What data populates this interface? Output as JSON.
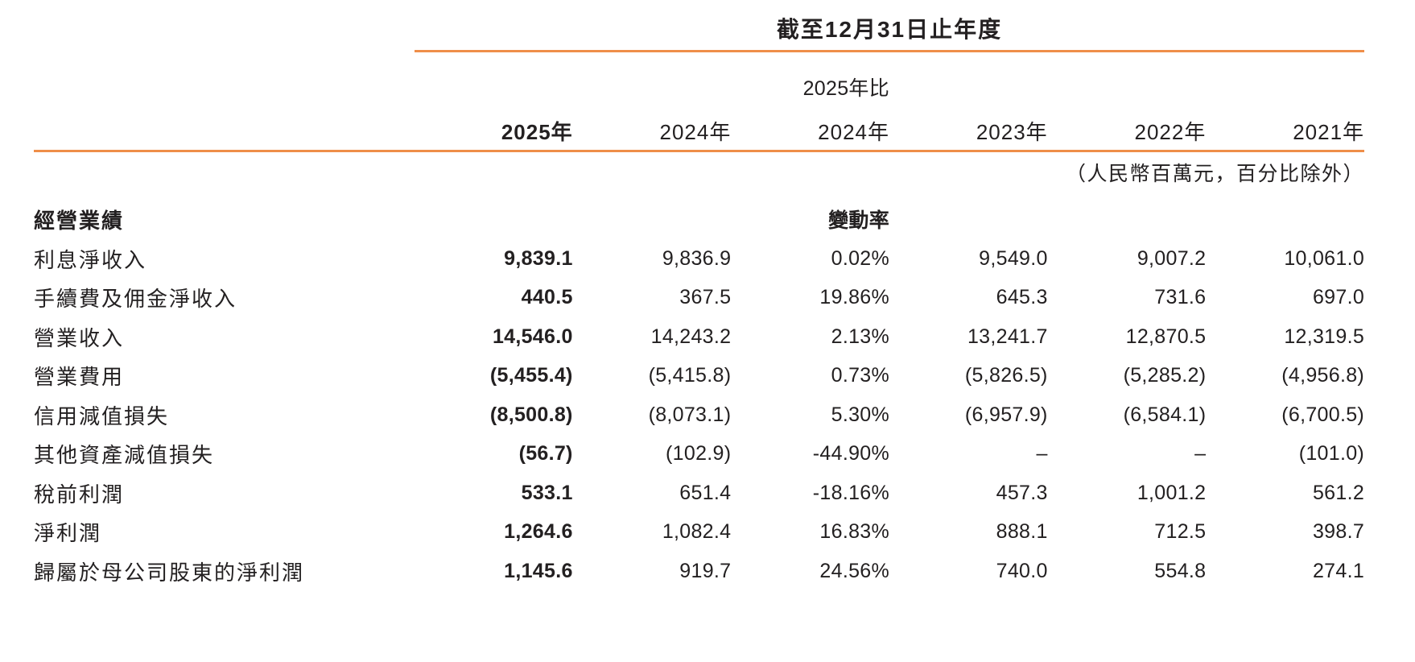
{
  "colors": {
    "accent_rule": "#EF8E49",
    "text": "#232021"
  },
  "table": {
    "period_header": "截至12月31日止年度",
    "change_col_subheader": "2025年比",
    "unit_note": "（人民幣百萬元，百分比除外）",
    "section_title": "經營業績",
    "change_rate_label": "變動率",
    "columns": [
      "2025年",
      "2024年",
      "2024年",
      "2023年",
      "2022年",
      "2021年"
    ],
    "rows": [
      {
        "label": "利息淨收入",
        "values": [
          "9,839.1",
          "9,836.9",
          "0.02%",
          "9,549.0",
          "9,007.2",
          "10,061.0"
        ]
      },
      {
        "label": "手續費及佣金淨收入",
        "values": [
          "440.5",
          "367.5",
          "19.86%",
          "645.3",
          "731.6",
          "697.0"
        ]
      },
      {
        "label": "營業收入",
        "values": [
          "14,546.0",
          "14,243.2",
          "2.13%",
          "13,241.7",
          "12,870.5",
          "12,319.5"
        ]
      },
      {
        "label": "營業費用",
        "values": [
          "(5,455.4)",
          "(5,415.8)",
          "0.73%",
          "(5,826.5)",
          "(5,285.2)",
          "(4,956.8)"
        ]
      },
      {
        "label": "信用減值損失",
        "values": [
          "(8,500.8)",
          "(8,073.1)",
          "5.30%",
          "(6,957.9)",
          "(6,584.1)",
          "(6,700.5)"
        ]
      },
      {
        "label": "其他資產減值損失",
        "values": [
          "(56.7)",
          "(102.9)",
          "-44.90%",
          "–",
          "–",
          "(101.0)"
        ]
      },
      {
        "label": "稅前利潤",
        "values": [
          "533.1",
          "651.4",
          "-18.16%",
          "457.3",
          "1,001.2",
          "561.2"
        ]
      },
      {
        "label": "淨利潤",
        "values": [
          "1,264.6",
          "1,082.4",
          "16.83%",
          "888.1",
          "712.5",
          "398.7"
        ]
      },
      {
        "label": "歸屬於母公司股東的淨利潤",
        "values": [
          "1,145.6",
          "919.7",
          "24.56%",
          "740.0",
          "554.8",
          "274.1"
        ]
      }
    ]
  }
}
